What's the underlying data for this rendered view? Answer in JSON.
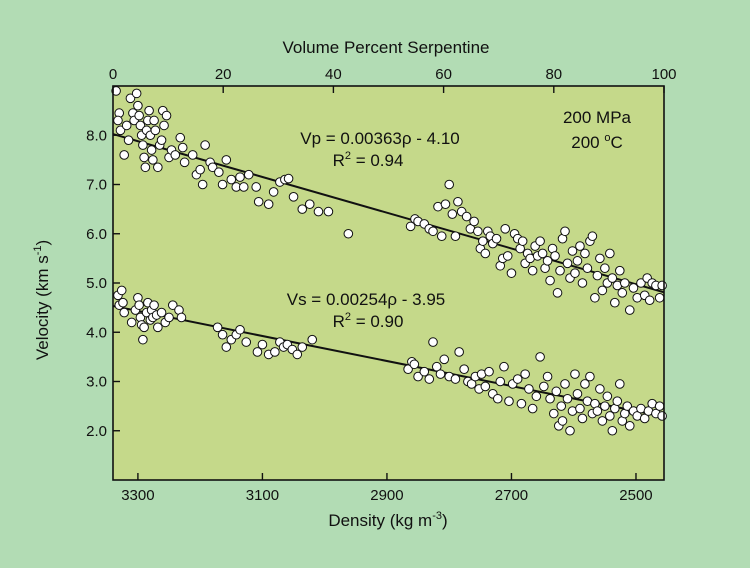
{
  "colors": {
    "page_background": "#b2dcb4",
    "plot_background": "#c5d98a",
    "point_fill": "#ffffff",
    "ink": "#111111"
  },
  "chart_data": {
    "type": "scatter",
    "title": "",
    "xlabel": "Density (kg m",
    "xlabel_sup": "-3",
    "xlabel_tail": ")",
    "x2label": "Volume Percent Serpentine",
    "ylabel": "Velocity (km s",
    "ylabel_sup": "-1",
    "ylabel_tail": ")",
    "xlim": [
      3340,
      2455
    ],
    "ylim": [
      1.0,
      9.0
    ],
    "x2lim": [
      0,
      100
    ],
    "xticks": [
      3300,
      3100,
      2900,
      2700,
      2500
    ],
    "x2ticks": [
      0,
      20,
      40,
      60,
      80,
      100
    ],
    "yticks": [
      2.0,
      3.0,
      4.0,
      5.0,
      6.0,
      7.0,
      8.0
    ],
    "grid": false,
    "conditions": {
      "pressure": "200 MPa",
      "temperature_value": "200 ",
      "temperature_sup": "o",
      "temperature_unit": "C"
    },
    "annotations": {
      "vp_equation": "Vp = 0.00363ρ - 4.10",
      "vp_r2_prefix": "R",
      "vp_r2_sup": "2",
      "vp_r2_value": " = 0.94",
      "vs_equation": "Vs = 0.00254ρ - 3.95",
      "vs_r2_prefix": "R",
      "vs_r2_sup": "2",
      "vs_r2_value": " = 0.90"
    },
    "fits": [
      {
        "slope": 0.00363,
        "intercept": -4.1
      },
      {
        "slope": 0.00254,
        "intercept": -3.95
      }
    ],
    "series": [
      {
        "points": [
          [
            3335,
            8.9
          ],
          [
            3330,
            8.45
          ],
          [
            3332,
            8.3
          ],
          [
            3328,
            8.1
          ],
          [
            3322,
            7.6
          ],
          [
            3318,
            8.2
          ],
          [
            3315,
            7.9
          ],
          [
            3312,
            8.75
          ],
          [
            3308,
            8.45
          ],
          [
            3306,
            8.3
          ],
          [
            3302,
            8.85
          ],
          [
            3300,
            8.6
          ],
          [
            3298,
            8.4
          ],
          [
            3296,
            8.2
          ],
          [
            3294,
            8.0
          ],
          [
            3292,
            7.8
          ],
          [
            3290,
            7.55
          ],
          [
            3288,
            7.35
          ],
          [
            3286,
            8.1
          ],
          [
            3284,
            8.3
          ],
          [
            3282,
            8.5
          ],
          [
            3280,
            8.0
          ],
          [
            3278,
            7.7
          ],
          [
            3276,
            7.5
          ],
          [
            3274,
            8.3
          ],
          [
            3272,
            8.1
          ],
          [
            3268,
            7.35
          ],
          [
            3265,
            7.8
          ],
          [
            3262,
            7.9
          ],
          [
            3260,
            8.5
          ],
          [
            3258,
            8.2
          ],
          [
            3254,
            8.4
          ],
          [
            3250,
            7.55
          ],
          [
            3246,
            7.7
          ],
          [
            3240,
            7.6
          ],
          [
            3232,
            7.95
          ],
          [
            3228,
            7.75
          ],
          [
            3225,
            7.45
          ],
          [
            3212,
            7.6
          ],
          [
            3206,
            7.2
          ],
          [
            3200,
            7.3
          ],
          [
            3196,
            7.0
          ],
          [
            3192,
            7.8
          ],
          [
            3184,
            7.45
          ],
          [
            3180,
            7.35
          ],
          [
            3170,
            7.25
          ],
          [
            3164,
            7.0
          ],
          [
            3158,
            7.5
          ],
          [
            3150,
            7.1
          ],
          [
            3142,
            6.95
          ],
          [
            3136,
            7.15
          ],
          [
            3130,
            6.95
          ],
          [
            3122,
            7.2
          ],
          [
            3110,
            6.95
          ],
          [
            3106,
            6.65
          ],
          [
            3090,
            6.6
          ],
          [
            3082,
            6.85
          ],
          [
            3072,
            7.05
          ],
          [
            3064,
            7.1
          ],
          [
            3058,
            7.12
          ],
          [
            3050,
            6.75
          ],
          [
            3036,
            6.5
          ],
          [
            3024,
            6.6
          ],
          [
            3010,
            6.45
          ],
          [
            2994,
            6.45
          ],
          [
            2962,
            6.0
          ],
          [
            2862,
            6.15
          ],
          [
            2855,
            6.3
          ],
          [
            2850,
            6.25
          ],
          [
            2840,
            6.2
          ],
          [
            2832,
            6.1
          ],
          [
            2826,
            6.05
          ],
          [
            2818,
            6.55
          ],
          [
            2812,
            5.95
          ],
          [
            2806,
            6.6
          ],
          [
            2800,
            7.0
          ],
          [
            2795,
            6.4
          ],
          [
            2790,
            5.95
          ],
          [
            2786,
            6.65
          ],
          [
            2780,
            6.45
          ],
          [
            2772,
            6.35
          ],
          [
            2766,
            6.1
          ],
          [
            2760,
            6.25
          ],
          [
            2754,
            6.05
          ],
          [
            2750,
            5.7
          ],
          [
            2746,
            5.85
          ],
          [
            2742,
            5.6
          ],
          [
            2738,
            6.05
          ],
          [
            2734,
            5.95
          ],
          [
            2730,
            5.8
          ],
          [
            2724,
            5.9
          ],
          [
            2718,
            5.35
          ],
          [
            2714,
            5.5
          ],
          [
            2710,
            6.1
          ],
          [
            2706,
            5.55
          ],
          [
            2700,
            5.2
          ],
          [
            2695,
            6.0
          ],
          [
            2690,
            5.9
          ],
          [
            2686,
            5.7
          ],
          [
            2682,
            5.85
          ],
          [
            2678,
            5.4
          ],
          [
            2674,
            5.6
          ],
          [
            2670,
            5.5
          ],
          [
            2666,
            5.25
          ],
          [
            2662,
            5.75
          ],
          [
            2658,
            5.55
          ],
          [
            2654,
            5.85
          ],
          [
            2650,
            5.6
          ],
          [
            2646,
            5.3
          ],
          [
            2642,
            5.45
          ],
          [
            2638,
            5.05
          ],
          [
            2634,
            5.7
          ],
          [
            2630,
            5.55
          ],
          [
            2626,
            4.8
          ],
          [
            2622,
            5.25
          ],
          [
            2618,
            5.9
          ],
          [
            2614,
            6.05
          ],
          [
            2610,
            5.4
          ],
          [
            2606,
            5.1
          ],
          [
            2602,
            5.65
          ],
          [
            2598,
            5.2
          ],
          [
            2594,
            5.45
          ],
          [
            2590,
            5.75
          ],
          [
            2586,
            5.0
          ],
          [
            2582,
            5.6
          ],
          [
            2578,
            5.3
          ],
          [
            2574,
            5.85
          ],
          [
            2570,
            5.95
          ],
          [
            2566,
            4.7
          ],
          [
            2562,
            5.15
          ],
          [
            2558,
            5.5
          ],
          [
            2554,
            4.85
          ],
          [
            2550,
            5.3
          ],
          [
            2546,
            5.0
          ],
          [
            2542,
            5.6
          ],
          [
            2538,
            5.1
          ],
          [
            2534,
            4.6
          ],
          [
            2530,
            4.95
          ],
          [
            2526,
            5.25
          ],
          [
            2522,
            4.8
          ],
          [
            2518,
            5.0
          ],
          [
            2510,
            4.45
          ],
          [
            2504,
            4.9
          ],
          [
            2498,
            4.7
          ],
          [
            2492,
            5.0
          ],
          [
            2486,
            4.75
          ],
          [
            2482,
            5.1
          ],
          [
            2478,
            4.65
          ],
          [
            2474,
            5.0
          ],
          [
            2468,
            4.95
          ],
          [
            2462,
            4.7
          ],
          [
            2458,
            4.95
          ]
        ]
      },
      {
        "points": [
          [
            3332,
            4.75
          ],
          [
            3330,
            4.55
          ],
          [
            3326,
            4.85
          ],
          [
            3324,
            4.6
          ],
          [
            3322,
            4.4
          ],
          [
            3310,
            4.2
          ],
          [
            3304,
            4.45
          ],
          [
            3300,
            4.7
          ],
          [
            3298,
            4.55
          ],
          [
            3296,
            4.3
          ],
          [
            3294,
            4.15
          ],
          [
            3292,
            3.85
          ],
          [
            3290,
            4.1
          ],
          [
            3286,
            4.4
          ],
          [
            3284,
            4.6
          ],
          [
            3280,
            4.25
          ],
          [
            3278,
            4.45
          ],
          [
            3276,
            4.3
          ],
          [
            3274,
            4.55
          ],
          [
            3270,
            4.35
          ],
          [
            3268,
            4.1
          ],
          [
            3262,
            4.4
          ],
          [
            3256,
            4.2
          ],
          [
            3250,
            4.3
          ],
          [
            3244,
            4.55
          ],
          [
            3234,
            4.45
          ],
          [
            3230,
            4.3
          ],
          [
            3172,
            4.1
          ],
          [
            3164,
            3.95
          ],
          [
            3158,
            3.7
          ],
          [
            3150,
            3.85
          ],
          [
            3142,
            3.95
          ],
          [
            3136,
            4.05
          ],
          [
            3126,
            3.8
          ],
          [
            3108,
            3.6
          ],
          [
            3100,
            3.75
          ],
          [
            3090,
            3.55
          ],
          [
            3080,
            3.6
          ],
          [
            3072,
            3.8
          ],
          [
            3066,
            3.7
          ],
          [
            3060,
            3.75
          ],
          [
            3052,
            3.65
          ],
          [
            3044,
            3.55
          ],
          [
            3036,
            3.7
          ],
          [
            3020,
            3.85
          ],
          [
            2866,
            3.25
          ],
          [
            2860,
            3.4
          ],
          [
            2856,
            3.35
          ],
          [
            2850,
            3.1
          ],
          [
            2840,
            3.2
          ],
          [
            2832,
            3.05
          ],
          [
            2826,
            3.8
          ],
          [
            2820,
            3.3
          ],
          [
            2814,
            3.15
          ],
          [
            2808,
            3.45
          ],
          [
            2800,
            3.1
          ],
          [
            2790,
            3.05
          ],
          [
            2784,
            3.6
          ],
          [
            2776,
            3.25
          ],
          [
            2770,
            3.0
          ],
          [
            2764,
            2.95
          ],
          [
            2758,
            3.1
          ],
          [
            2752,
            2.85
          ],
          [
            2748,
            3.15
          ],
          [
            2742,
            2.9
          ],
          [
            2736,
            3.2
          ],
          [
            2730,
            2.75
          ],
          [
            2722,
            2.65
          ],
          [
            2718,
            3.0
          ],
          [
            2712,
            3.3
          ],
          [
            2704,
            2.6
          ],
          [
            2698,
            2.95
          ],
          [
            2690,
            3.05
          ],
          [
            2684,
            2.55
          ],
          [
            2678,
            3.15
          ],
          [
            2672,
            2.85
          ],
          [
            2666,
            2.45
          ],
          [
            2660,
            2.7
          ],
          [
            2654,
            3.5
          ],
          [
            2648,
            2.9
          ],
          [
            2642,
            3.1
          ],
          [
            2638,
            2.65
          ],
          [
            2632,
            2.35
          ],
          [
            2628,
            2.8
          ],
          [
            2624,
            2.1
          ],
          [
            2620,
            2.5
          ],
          [
            2618,
            2.2
          ],
          [
            2614,
            2.95
          ],
          [
            2610,
            2.65
          ],
          [
            2606,
            2.0
          ],
          [
            2602,
            2.4
          ],
          [
            2598,
            3.15
          ],
          [
            2594,
            2.75
          ],
          [
            2590,
            2.45
          ],
          [
            2586,
            2.25
          ],
          [
            2582,
            2.95
          ],
          [
            2578,
            2.6
          ],
          [
            2574,
            3.1
          ],
          [
            2570,
            2.35
          ],
          [
            2566,
            2.55
          ],
          [
            2562,
            2.4
          ],
          [
            2558,
            2.85
          ],
          [
            2554,
            2.2
          ],
          [
            2550,
            2.5
          ],
          [
            2546,
            2.7
          ],
          [
            2542,
            2.3
          ],
          [
            2538,
            2.0
          ],
          [
            2534,
            2.45
          ],
          [
            2530,
            2.6
          ],
          [
            2526,
            2.95
          ],
          [
            2522,
            2.2
          ],
          [
            2518,
            2.35
          ],
          [
            2514,
            2.5
          ],
          [
            2510,
            2.1
          ],
          [
            2504,
            2.4
          ],
          [
            2498,
            2.3
          ],
          [
            2492,
            2.45
          ],
          [
            2486,
            2.25
          ],
          [
            2480,
            2.4
          ],
          [
            2474,
            2.55
          ],
          [
            2468,
            2.35
          ],
          [
            2462,
            2.5
          ],
          [
            2458,
            2.3
          ]
        ]
      }
    ]
  }
}
